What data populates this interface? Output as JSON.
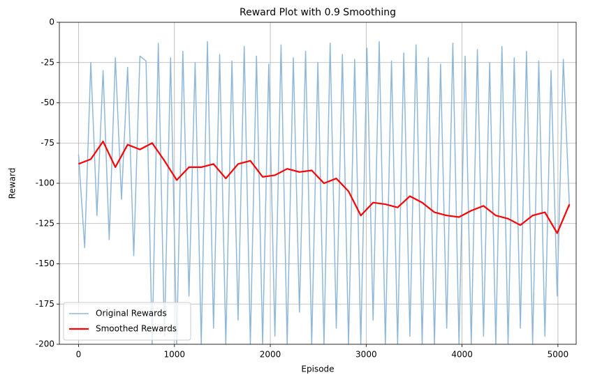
{
  "chart_data": {
    "type": "line",
    "title": "Reward Plot with 0.9 Smoothing",
    "x_label": "Episode",
    "y_label": "Reward",
    "xlim": [
      -200,
      5190
    ],
    "ylim": [
      -200,
      0
    ],
    "xticks": [
      0,
      1000,
      2000,
      3000,
      4000,
      5000
    ],
    "yticks": [
      -200,
      -175,
      -150,
      -125,
      -100,
      -75,
      -50,
      -25,
      0
    ],
    "grid": true,
    "legend": "lower left",
    "series": [
      {
        "name": "Original Rewards",
        "color": "#8fb8d8",
        "width": 1.5,
        "x": [
          0,
          64,
          128,
          192,
          256,
          320,
          384,
          448,
          512,
          576,
          640,
          704,
          768,
          832,
          896,
          960,
          1024,
          1088,
          1152,
          1216,
          1280,
          1344,
          1408,
          1472,
          1536,
          1600,
          1664,
          1728,
          1792,
          1856,
          1920,
          1984,
          2048,
          2112,
          2176,
          2240,
          2304,
          2368,
          2432,
          2496,
          2560,
          2624,
          2688,
          2752,
          2816,
          2880,
          2944,
          3008,
          3072,
          3136,
          3200,
          3264,
          3328,
          3392,
          3456,
          3520,
          3584,
          3648,
          3712,
          3776,
          3840,
          3904,
          3968,
          4032,
          4096,
          4160,
          4224,
          4288,
          4352,
          4416,
          4480,
          4544,
          4608,
          4672,
          4736,
          4800,
          4864,
          4928,
          4992,
          5056,
          5120
        ],
        "values": [
          -82,
          -140,
          -25,
          -120,
          -30,
          -135,
          -22,
          -110,
          -28,
          -145,
          -21,
          -24,
          -200,
          -13,
          -195,
          -22,
          -200,
          -18,
          -170,
          -25,
          -200,
          -12,
          -190,
          -20,
          -200,
          -24,
          -185,
          -15,
          -200,
          -21,
          -200,
          -26,
          -195,
          -14,
          -200,
          -22,
          -180,
          -18,
          -200,
          -25,
          -200,
          -13,
          -190,
          -20,
          -200,
          -23,
          -200,
          -16,
          -185,
          -12,
          -200,
          -24,
          -200,
          -19,
          -195,
          -14,
          -200,
          -22,
          -200,
          -26,
          -190,
          -13,
          -200,
          -21,
          -200,
          -17,
          -195,
          -25,
          -200,
          -15,
          -200,
          -22,
          -190,
          -18,
          -200,
          -24,
          -195,
          -30,
          -170,
          -23,
          -115
        ]
      },
      {
        "name": "Smoothed Rewards",
        "color": "#ff0000",
        "width": 2.2,
        "x": [
          0,
          128,
          256,
          384,
          512,
          640,
          768,
          896,
          1024,
          1152,
          1280,
          1408,
          1536,
          1664,
          1792,
          1920,
          2048,
          2176,
          2304,
          2432,
          2560,
          2688,
          2816,
          2944,
          3072,
          3200,
          3328,
          3456,
          3584,
          3712,
          3840,
          3968,
          4096,
          4224,
          4352,
          4480,
          4608,
          4736,
          4864,
          4992,
          5120
        ],
        "values": [
          -88,
          -85,
          -74,
          -90,
          -76,
          -79,
          -75,
          -86,
          -98,
          -90,
          -90,
          -88,
          -97,
          -88,
          -86,
          -96,
          -95,
          -91,
          -93,
          -92,
          -100,
          -97,
          -105,
          -120,
          -112,
          -113,
          -115,
          -108,
          -112,
          -118,
          -120,
          -121,
          -117,
          -114,
          -120,
          -122,
          -126,
          -120,
          -118,
          -131,
          -113
        ]
      }
    ]
  }
}
